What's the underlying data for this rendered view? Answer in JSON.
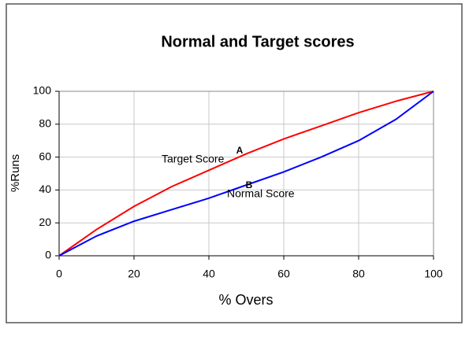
{
  "chart_data": {
    "type": "line",
    "title": "Normal and Target scores",
    "xlabel": "% Overs",
    "ylabel": "%Runs",
    "x": [
      0,
      10,
      20,
      30,
      40,
      50,
      60,
      70,
      80,
      90,
      100
    ],
    "series": [
      {
        "name": "Target Score",
        "color": "#ff0000",
        "values": [
          0,
          16,
          30,
          42,
          52,
          62,
          71,
          79,
          87,
          94,
          100
        ]
      },
      {
        "name": "Normal Score",
        "color": "#0000ff",
        "values": [
          0,
          12,
          21,
          28,
          35,
          43,
          51,
          60,
          70,
          83,
          100
        ]
      }
    ],
    "annotations": [
      "Target Score",
      "A",
      "Normal Score",
      "B"
    ],
    "xlim": [
      0,
      100
    ],
    "xticks": [
      0,
      20,
      40,
      60,
      80,
      100
    ],
    "ylim": [
      0,
      100
    ],
    "yticks": [
      0,
      20,
      40,
      60,
      80,
      100
    ],
    "grid": true
  }
}
